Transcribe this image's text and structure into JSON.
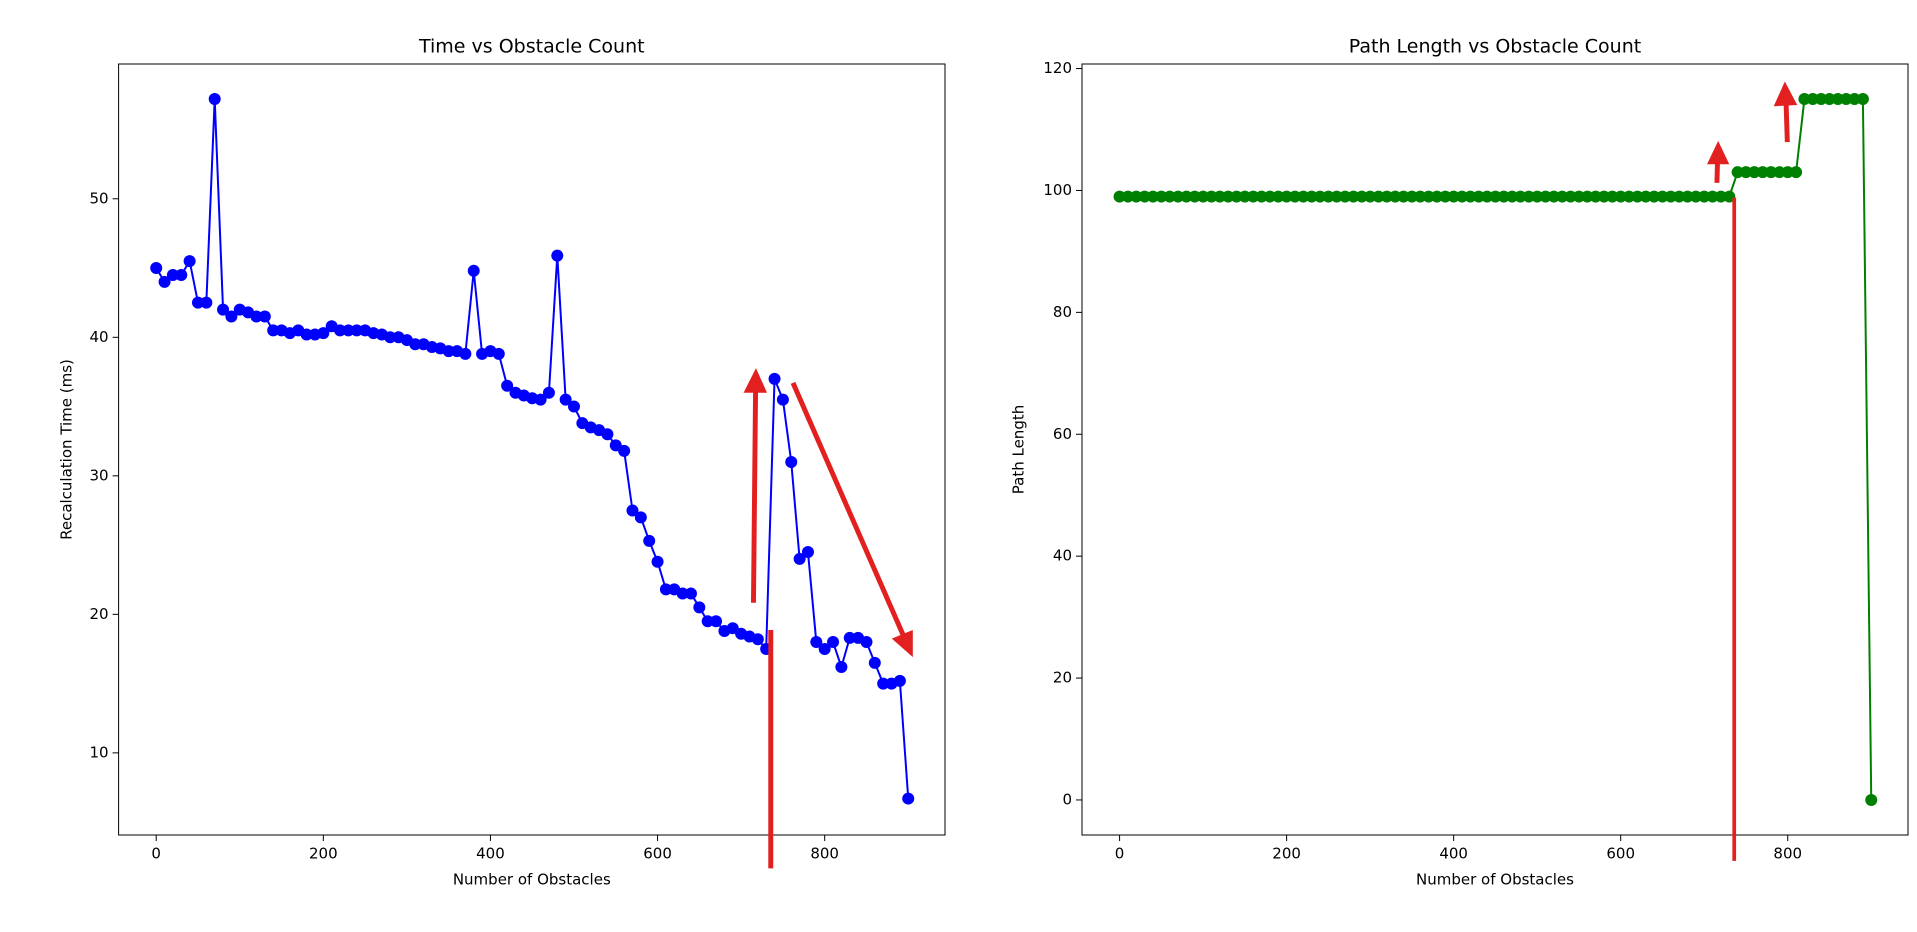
{
  "chart_data": [
    {
      "type": "line",
      "title": "Time vs Obstacle Count",
      "x_label": "Number of Obstacles",
      "y_label": "Recalculation Time (ms)",
      "x": [
        0,
        10,
        20,
        30,
        40,
        50,
        60,
        70,
        80,
        90,
        100,
        110,
        120,
        130,
        140,
        150,
        160,
        170,
        180,
        190,
        200,
        210,
        220,
        230,
        240,
        250,
        260,
        270,
        280,
        290,
        300,
        310,
        320,
        330,
        340,
        350,
        360,
        370,
        380,
        390,
        400,
        410,
        420,
        430,
        440,
        450,
        460,
        470,
        480,
        490,
        500,
        510,
        520,
        530,
        540,
        550,
        560,
        570,
        580,
        590,
        600,
        610,
        620,
        630,
        640,
        650,
        660,
        670,
        680,
        690,
        700,
        710,
        720,
        730,
        740,
        750,
        760,
        770,
        780,
        790,
        800,
        810,
        820,
        830,
        840,
        850,
        860,
        870,
        880,
        890,
        900
      ],
      "series": [
        {
          "name": "Recalculation Time",
          "color": "#0000ff",
          "values": [
            45,
            44,
            44.5,
            44.5,
            45.5,
            42.5,
            42.5,
            57.2,
            42,
            41.5,
            42,
            41.8,
            41.5,
            41.5,
            40.5,
            40.5,
            40.3,
            40.5,
            40.2,
            40.2,
            40.3,
            40.8,
            40.5,
            40.5,
            40.5,
            40.5,
            40.3,
            40.2,
            40,
            40,
            39.8,
            39.5,
            39.5,
            39.3,
            39.2,
            39,
            39,
            38.8,
            44.8,
            38.8,
            39,
            38.8,
            36.5,
            36,
            35.8,
            35.6,
            35.5,
            36,
            45.9,
            35.5,
            35,
            33.8,
            33.5,
            33.3,
            33,
            32.2,
            31.8,
            27.5,
            27,
            25.3,
            23.8,
            21.8,
            21.8,
            21.5,
            21.5,
            20.5,
            19.5,
            19.5,
            18.8,
            19,
            18.6,
            18.4,
            18.2,
            17.5,
            37,
            35.5,
            31,
            24,
            24.5,
            18,
            17.5,
            18,
            16.2,
            18.3,
            18.3,
            18,
            16.5,
            15,
            15,
            15.2,
            6.7
          ]
        }
      ],
      "xlim": [
        -45,
        944
      ],
      "xticks": [
        0,
        200,
        400,
        600,
        800
      ],
      "ylim": [
        4.07,
        59.73
      ],
      "yticks": [
        10,
        20,
        30,
        40,
        50
      ]
    },
    {
      "type": "line",
      "title": "Path Length vs Obstacle Count",
      "x_label": "Number of Obstacles",
      "y_label": "Path Length",
      "x": [
        0,
        10,
        20,
        30,
        40,
        50,
        60,
        70,
        80,
        90,
        100,
        110,
        120,
        130,
        140,
        150,
        160,
        170,
        180,
        190,
        200,
        210,
        220,
        230,
        240,
        250,
        260,
        270,
        280,
        290,
        300,
        310,
        320,
        330,
        340,
        350,
        360,
        370,
        380,
        390,
        400,
        410,
        420,
        430,
        440,
        450,
        460,
        470,
        480,
        490,
        500,
        510,
        520,
        530,
        540,
        550,
        560,
        570,
        580,
        590,
        600,
        610,
        620,
        630,
        640,
        650,
        660,
        670,
        680,
        690,
        700,
        710,
        720,
        730,
        740,
        750,
        760,
        770,
        780,
        790,
        800,
        810,
        820,
        830,
        840,
        850,
        860,
        870,
        880,
        890,
        900
      ],
      "series": [
        {
          "name": "Path Length",
          "color": "#008000",
          "values": [
            99,
            99,
            99,
            99,
            99,
            99,
            99,
            99,
            99,
            99,
            99,
            99,
            99,
            99,
            99,
            99,
            99,
            99,
            99,
            99,
            99,
            99,
            99,
            99,
            99,
            99,
            99,
            99,
            99,
            99,
            99,
            99,
            99,
            99,
            99,
            99,
            99,
            99,
            99,
            99,
            99,
            99,
            99,
            99,
            99,
            99,
            99,
            99,
            99,
            99,
            99,
            99,
            99,
            99,
            99,
            99,
            99,
            99,
            99,
            99,
            99,
            99,
            99,
            99,
            99,
            99,
            99,
            99,
            99,
            99,
            99,
            99,
            99,
            99,
            103,
            103,
            103,
            103,
            103,
            103,
            103,
            103,
            115,
            115,
            115,
            115,
            115,
            115,
            115,
            115,
            0
          ]
        }
      ],
      "xlim": [
        -45,
        944
      ],
      "xticks": [
        0,
        200,
        400,
        600,
        800
      ],
      "ylim": [
        -5.75,
        120.75
      ],
      "yticks": [
        0,
        20,
        40,
        60,
        80,
        100,
        120
      ]
    }
  ]
}
